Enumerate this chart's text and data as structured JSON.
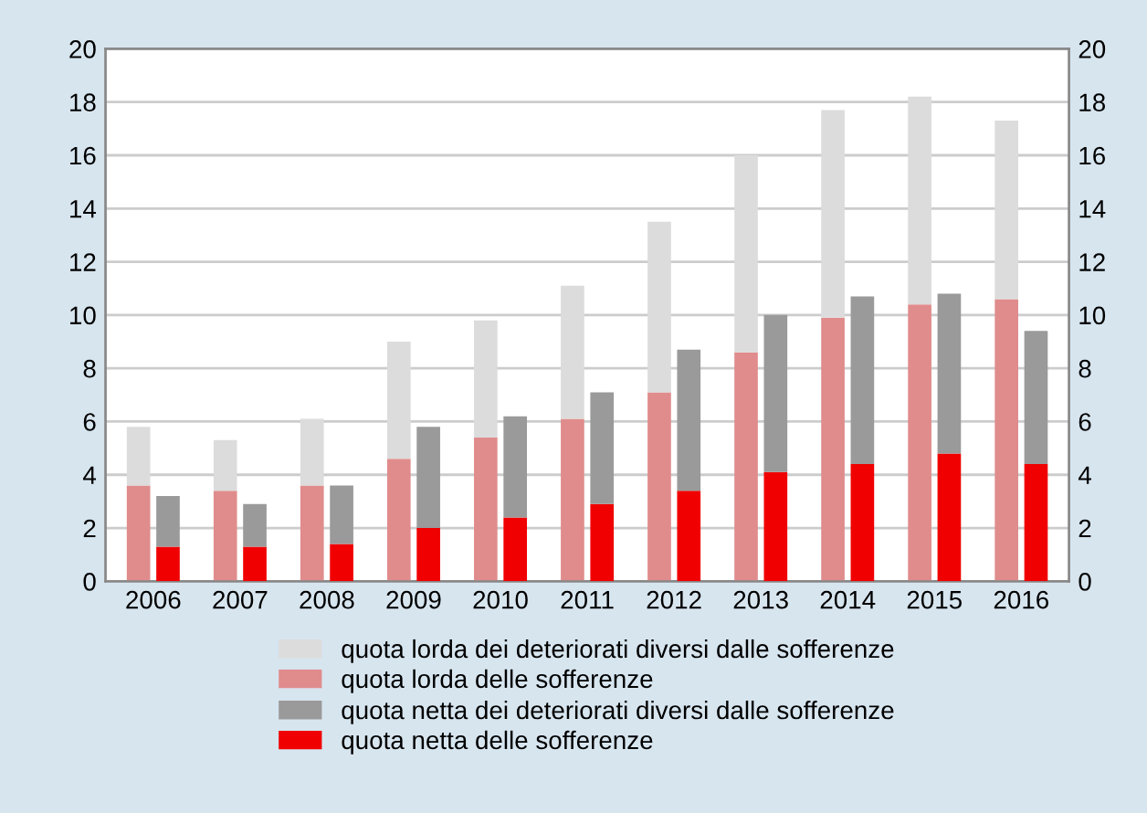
{
  "chart_data": [
    {
      "type": "bar",
      "stacked": true,
      "categories": [
        "2006",
        "2007",
        "2008",
        "2009",
        "2010",
        "2011",
        "2012",
        "2013",
        "2014",
        "2015",
        "2016"
      ],
      "series": [
        {
          "name": "quota lorda delle sofferenze",
          "color": "#e08c8c",
          "values": [
            3.6,
            3.4,
            3.6,
            4.6,
            5.4,
            6.1,
            7.1,
            8.6,
            9.9,
            10.4,
            10.6
          ]
        },
        {
          "name": "quota lorda dei deteriorati diversi dalle sofferenze",
          "color": "#dcdcdc",
          "values": [
            2.2,
            1.9,
            2.5,
            4.4,
            4.4,
            5.0,
            6.4,
            7.4,
            7.8,
            7.8,
            6.7
          ]
        }
      ],
      "ylim": [
        0,
        20
      ],
      "yticks": [
        0,
        2,
        4,
        6,
        8,
        10,
        12,
        14,
        16,
        18,
        20
      ],
      "y2lim": [
        0,
        20
      ],
      "y2ticks": [
        0,
        2,
        4,
        6,
        8,
        10,
        12,
        14,
        16,
        18,
        20
      ],
      "grid": "y",
      "legend": "bottom"
    },
    {
      "type": "bar",
      "stacked": true,
      "categories": [
        "2006",
        "2007",
        "2008",
        "2009",
        "2010",
        "2011",
        "2012",
        "2013",
        "2014",
        "2015",
        "2016"
      ],
      "series": [
        {
          "name": "quota netta delle sofferenze",
          "color": "#f00000",
          "values": [
            1.3,
            1.3,
            1.4,
            2.0,
            2.4,
            2.9,
            3.4,
            4.1,
            4.4,
            4.8,
            4.4
          ]
        },
        {
          "name": "quota netta dei deteriorati diversi dalle sofferenze",
          "color": "#9a9a9a",
          "values": [
            1.9,
            1.6,
            2.2,
            3.8,
            3.8,
            4.2,
            5.3,
            5.9,
            6.3,
            6.0,
            5.0
          ]
        }
      ],
      "ylim": [
        0,
        20
      ],
      "yticks": [
        0,
        2,
        4,
        6,
        8,
        10,
        12,
        14,
        16,
        18,
        20
      ],
      "tick_labels": false,
      "legend": "bottom"
    }
  ]
}
